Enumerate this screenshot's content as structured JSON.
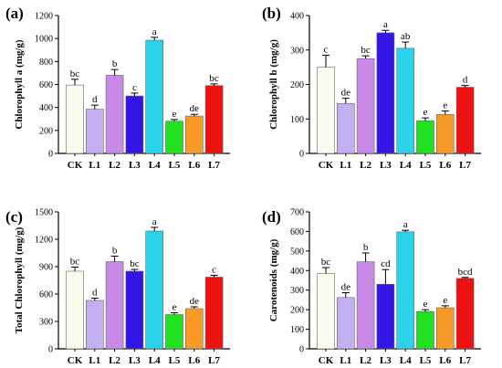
{
  "chart_data": [
    {
      "type": "bar",
      "panel": "(a)",
      "ylabel": "Chlorophyll a  (mg/g)",
      "categories": [
        "CK",
        "L1",
        "L2",
        "L3",
        "L4",
        "L5",
        "L6",
        "L7"
      ],
      "values": [
        595,
        385,
        680,
        500,
        985,
        280,
        325,
        590
      ],
      "errors": [
        50,
        35,
        50,
        25,
        25,
        15,
        15,
        15
      ],
      "letters": [
        "bc",
        "d",
        "b",
        "c",
        "a",
        "e",
        "de",
        "bc"
      ],
      "ylim": [
        0,
        1200
      ],
      "yticks": [
        0,
        200,
        400,
        600,
        800,
        1000,
        1200
      ]
    },
    {
      "type": "bar",
      "panel": "(b)",
      "ylabel": "Chlorophyll b  (mg/g)",
      "categories": [
        "CK",
        "L1",
        "L2",
        "L3",
        "L4",
        "L5",
        "L6",
        "L7"
      ],
      "values": [
        250,
        145,
        275,
        350,
        305,
        95,
        113,
        192
      ],
      "errors": [
        35,
        15,
        8,
        7,
        18,
        8,
        10,
        5
      ],
      "letters": [
        "c",
        "de",
        "bc",
        "a",
        "ab",
        "e",
        "e",
        "d"
      ],
      "ylim": [
        0,
        400
      ],
      "yticks": [
        0,
        100,
        200,
        300,
        400
      ]
    },
    {
      "type": "bar",
      "panel": "(c)",
      "ylabel": "Total Chlorophyll (mg/g)",
      "categories": [
        "CK",
        "L1",
        "L2",
        "L3",
        "L4",
        "L5",
        "L6",
        "L7"
      ],
      "values": [
        850,
        530,
        955,
        850,
        1290,
        375,
        440,
        785
      ],
      "errors": [
        45,
        25,
        60,
        20,
        40,
        20,
        20,
        20
      ],
      "letters": [
        "bc",
        "d",
        "b",
        "bc",
        "a",
        "e",
        "de",
        "c"
      ],
      "ylim": [
        0,
        1500
      ],
      "yticks": [
        0,
        300,
        600,
        900,
        1200,
        1500
      ]
    },
    {
      "type": "bar",
      "panel": "(d)",
      "ylabel": "Carotenoids (mg/g)",
      "categories": [
        "CK",
        "L1",
        "L2",
        "L3",
        "L4",
        "L5",
        "L6",
        "L7"
      ],
      "values": [
        385,
        262,
        445,
        330,
        598,
        190,
        210,
        360
      ],
      "errors": [
        30,
        25,
        45,
        75,
        8,
        10,
        10,
        5
      ],
      "letters": [
        "bc",
        "de",
        "b",
        "cd",
        "a",
        "e",
        "e",
        "bcd"
      ],
      "ylim": [
        0,
        700
      ],
      "yticks": [
        0,
        100,
        200,
        300,
        400,
        500,
        600,
        700
      ]
    }
  ],
  "colors": [
    "#fbfbee",
    "#c3b0f2",
    "#c88ae6",
    "#3315e6",
    "#2ad2ea",
    "#22e022",
    "#f79a28",
    "#ee1111"
  ]
}
